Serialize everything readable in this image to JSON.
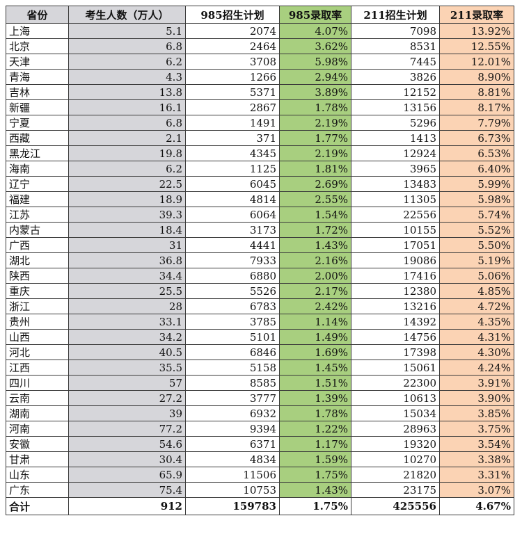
{
  "table": {
    "headers": [
      "省份",
      "考生人数（万人）",
      "985招生计划",
      "985录取率",
      "211招生计划",
      "211录取率"
    ],
    "rows": [
      [
        "上海",
        "5.1",
        "2074",
        "4.07%",
        "7098",
        "13.92%"
      ],
      [
        "北京",
        "6.8",
        "2464",
        "3.62%",
        "8531",
        "12.55%"
      ],
      [
        "天津",
        "6.2",
        "3708",
        "5.98%",
        "7445",
        "12.01%"
      ],
      [
        "青海",
        "4.3",
        "1266",
        "2.94%",
        "3826",
        "8.90%"
      ],
      [
        "吉林",
        "13.8",
        "5371",
        "3.89%",
        "12152",
        "8.81%"
      ],
      [
        "新疆",
        "16.1",
        "2867",
        "1.78%",
        "13156",
        "8.17%"
      ],
      [
        "宁夏",
        "6.8",
        "1491",
        "2.19%",
        "5296",
        "7.79%"
      ],
      [
        "西藏",
        "2.1",
        "371",
        "1.77%",
        "1413",
        "6.73%"
      ],
      [
        "黑龙江",
        "19.8",
        "4345",
        "2.19%",
        "12924",
        "6.53%"
      ],
      [
        "海南",
        "6.2",
        "1125",
        "1.81%",
        "3965",
        "6.40%"
      ],
      [
        "辽宁",
        "22.5",
        "6045",
        "2.69%",
        "13483",
        "5.99%"
      ],
      [
        "福建",
        "18.9",
        "4814",
        "2.55%",
        "11305",
        "5.98%"
      ],
      [
        "江苏",
        "39.3",
        "6064",
        "1.54%",
        "22556",
        "5.74%"
      ],
      [
        "内蒙古",
        "18.4",
        "3173",
        "1.72%",
        "10155",
        "5.52%"
      ],
      [
        "广西",
        "31",
        "4441",
        "1.43%",
        "17051",
        "5.50%"
      ],
      [
        "湖北",
        "36.8",
        "7933",
        "2.16%",
        "19086",
        "5.19%"
      ],
      [
        "陕西",
        "34.4",
        "6880",
        "2.00%",
        "17416",
        "5.06%"
      ],
      [
        "重庆",
        "25.5",
        "5526",
        "2.17%",
        "12380",
        "4.85%"
      ],
      [
        "浙江",
        "28",
        "6783",
        "2.42%",
        "13216",
        "4.72%"
      ],
      [
        "贵州",
        "33.1",
        "3785",
        "1.14%",
        "14392",
        "4.35%"
      ],
      [
        "山西",
        "34.2",
        "5101",
        "1.49%",
        "14756",
        "4.31%"
      ],
      [
        "河北",
        "40.5",
        "6846",
        "1.69%",
        "17398",
        "4.30%"
      ],
      [
        "江西",
        "35.5",
        "5158",
        "1.45%",
        "15061",
        "4.24%"
      ],
      [
        "四川",
        "57",
        "8585",
        "1.51%",
        "22300",
        "3.91%"
      ],
      [
        "云南",
        "27.2",
        "3777",
        "1.39%",
        "10613",
        "3.90%"
      ],
      [
        "湖南",
        "39",
        "6932",
        "1.78%",
        "15034",
        "3.85%"
      ],
      [
        "河南",
        "77.2",
        "9394",
        "1.22%",
        "28963",
        "3.75%"
      ],
      [
        "安徽",
        "54.6",
        "6371",
        "1.17%",
        "19320",
        "3.54%"
      ],
      [
        "甘肃",
        "30.4",
        "4834",
        "1.59%",
        "10270",
        "3.38%"
      ],
      [
        "山东",
        "65.9",
        "11506",
        "1.75%",
        "21820",
        "3.31%"
      ],
      [
        "广东",
        "75.4",
        "10753",
        "1.43%",
        "23175",
        "3.07%"
      ]
    ],
    "total": [
      "合计",
      "912",
      "159783",
      "1.75%",
      "425556",
      "4.67%"
    ]
  },
  "colors": {
    "grey": "#d6d6da",
    "green": "#a8cf7f",
    "peach": "#fbd3b4",
    "border": "#3a3a3a"
  }
}
